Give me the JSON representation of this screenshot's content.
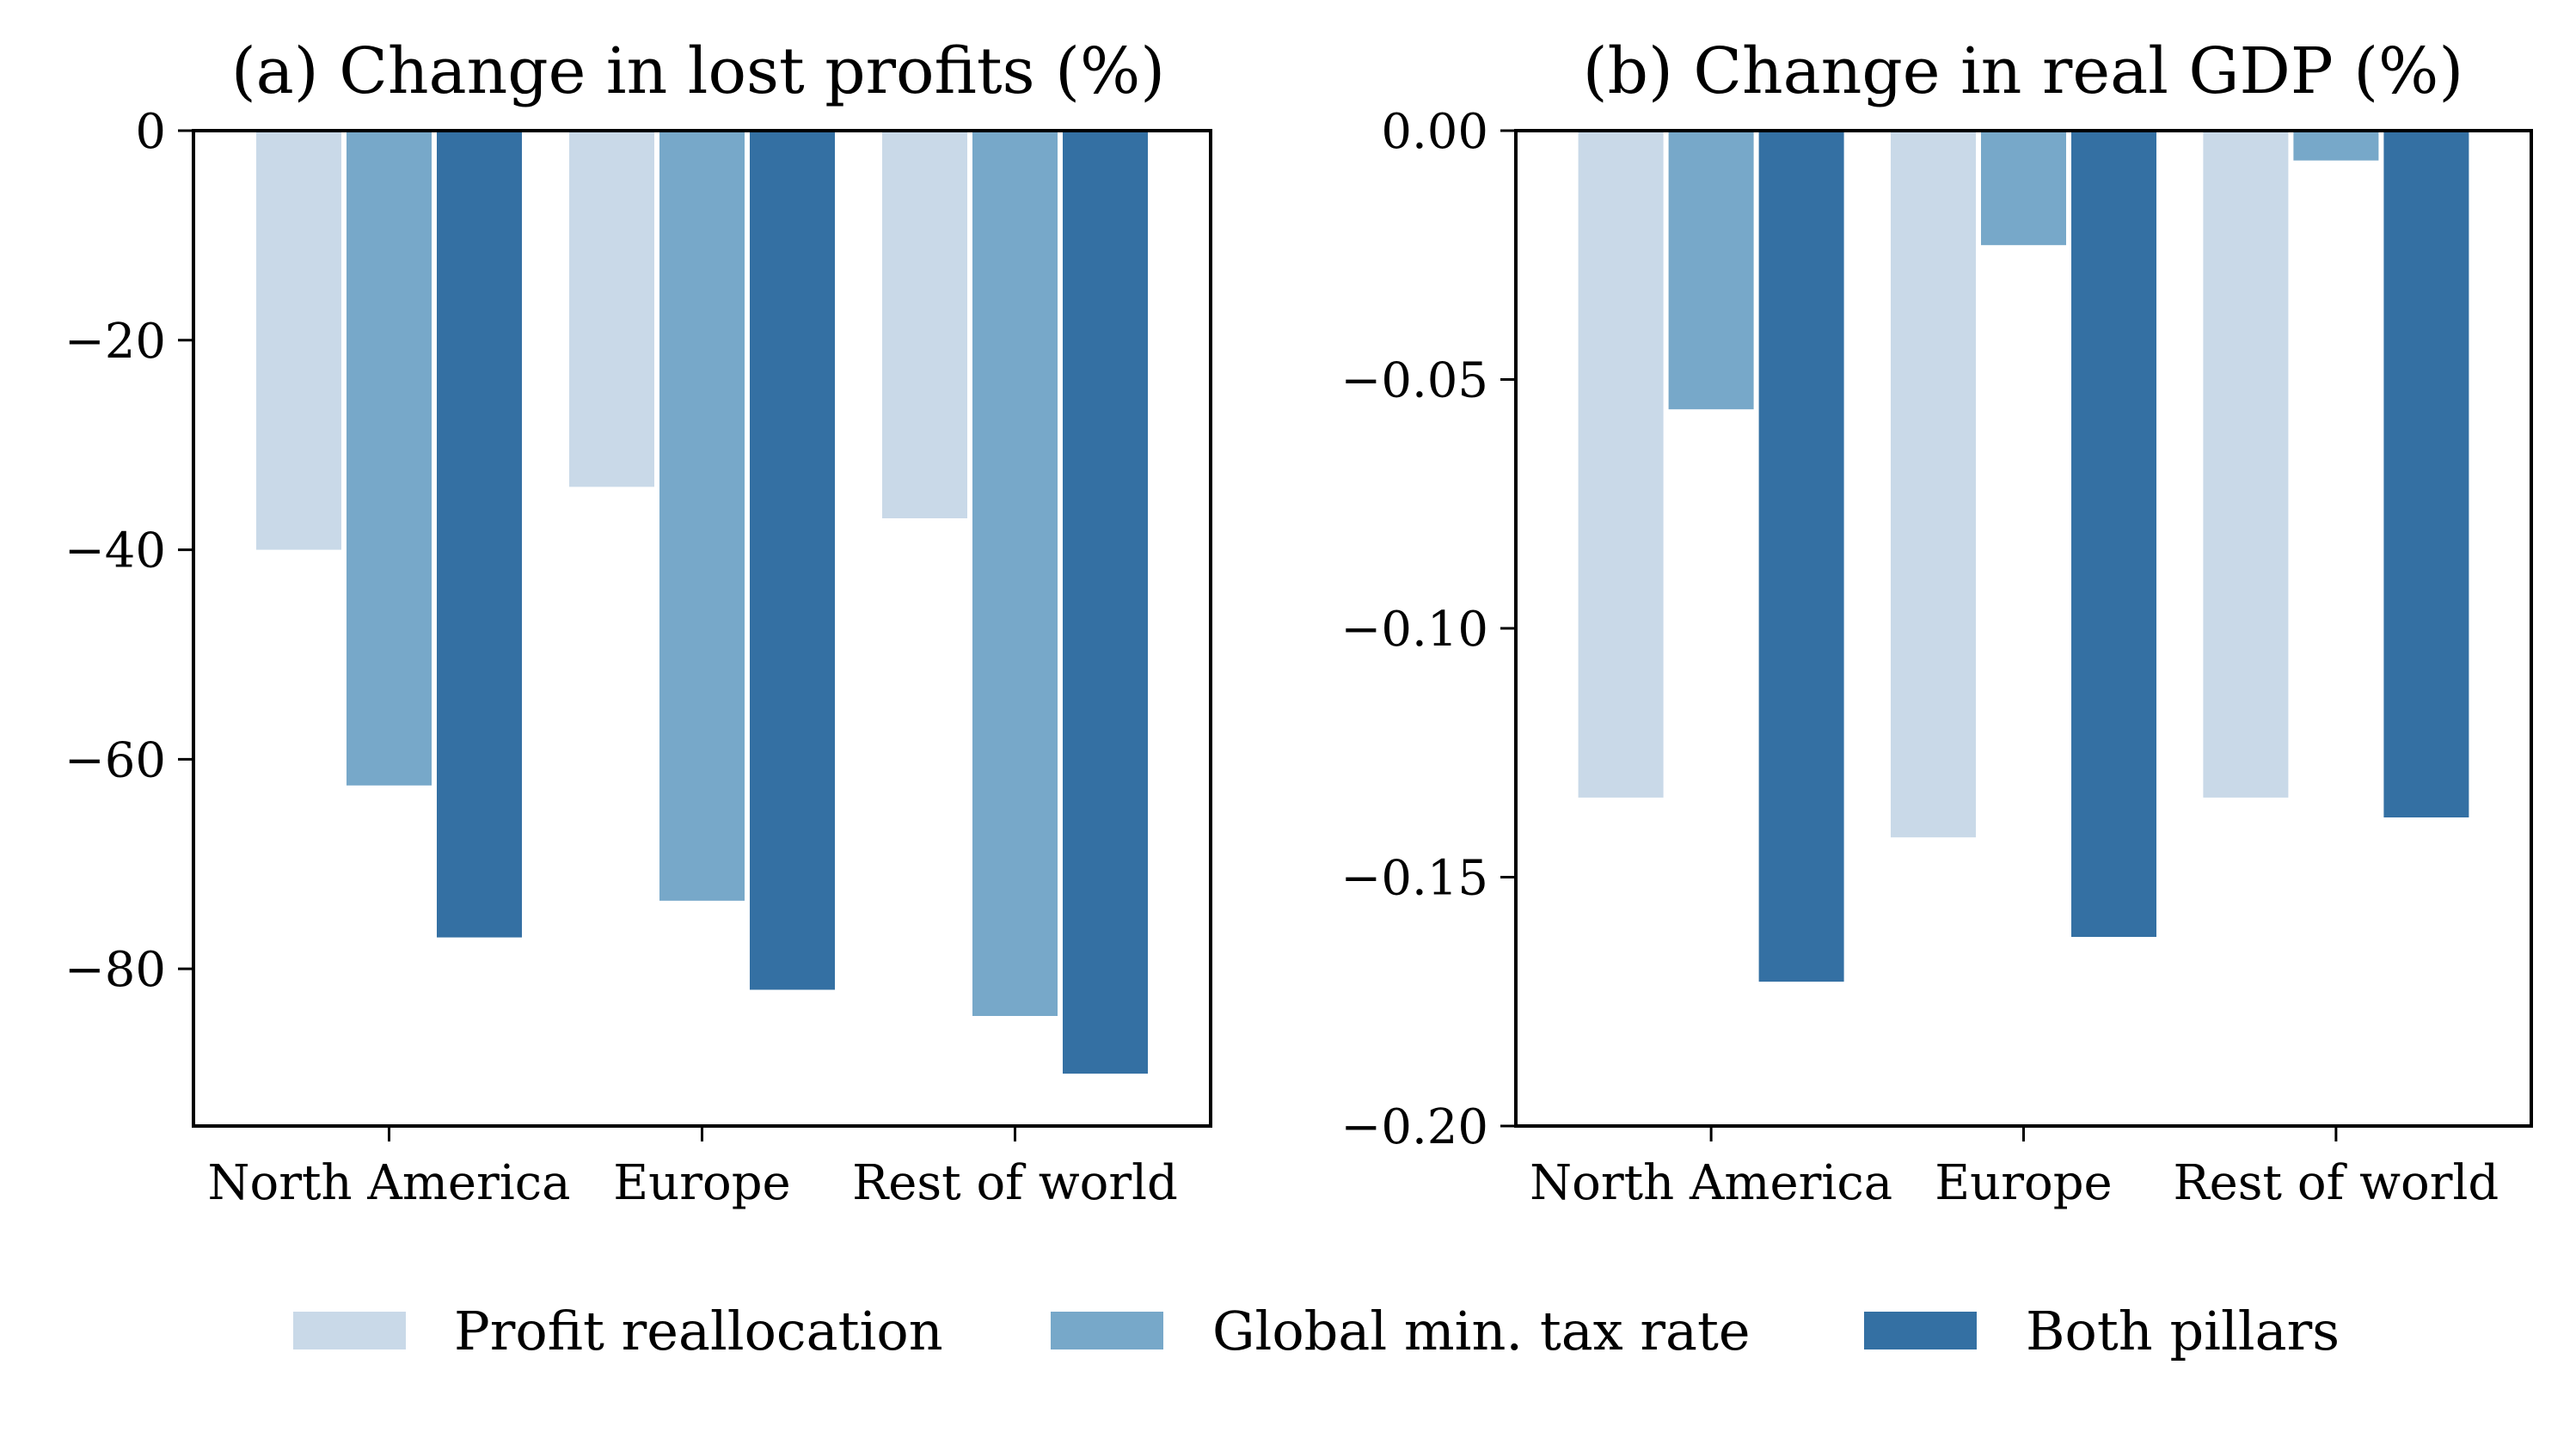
{
  "colors": {
    "series": [
      "#c9d9e8",
      "#77a8c9",
      "#3470a3"
    ],
    "axis": "#000000",
    "background": "#ffffff"
  },
  "legend": {
    "position": "bottom-center",
    "items": [
      "Profit reallocation",
      "Global min. tax rate",
      "Both pillars"
    ]
  },
  "chart_data": [
    {
      "type": "bar",
      "title": "(a) Change in lost profits (%)",
      "xlabel": "",
      "ylabel": "",
      "categories": [
        "North America",
        "Europe",
        "Rest of world"
      ],
      "series": [
        {
          "name": "Profit reallocation",
          "values": [
            -40,
            -34,
            -37
          ]
        },
        {
          "name": "Global min. tax rate",
          "values": [
            -62.5,
            -73.5,
            -84.5
          ]
        },
        {
          "name": "Both pillars",
          "values": [
            -77,
            -82,
            -90
          ]
        }
      ],
      "ylim": [
        -95,
        0
      ],
      "yticks": [
        0,
        -20,
        -40,
        -60,
        -80
      ],
      "ytick_labels": [
        "0",
        "−20",
        "−40",
        "−60",
        "−80"
      ],
      "grid": false
    },
    {
      "type": "bar",
      "title": "(b) Change in real GDP (%)",
      "xlabel": "",
      "ylabel": "",
      "categories": [
        "North America",
        "Europe",
        "Rest of world"
      ],
      "series": [
        {
          "name": "Profit reallocation",
          "values": [
            -0.134,
            -0.142,
            -0.134
          ]
        },
        {
          "name": "Global min. tax rate",
          "values": [
            -0.056,
            -0.023,
            -0.006
          ]
        },
        {
          "name": "Both pillars",
          "values": [
            -0.171,
            -0.162,
            -0.138
          ]
        }
      ],
      "ylim": [
        -0.2,
        0
      ],
      "yticks": [
        0,
        -0.05,
        -0.1,
        -0.15,
        -0.2
      ],
      "ytick_labels": [
        "0.00",
        "−0.05",
        "−0.10",
        "−0.15",
        "−0.20"
      ],
      "grid": false
    }
  ]
}
